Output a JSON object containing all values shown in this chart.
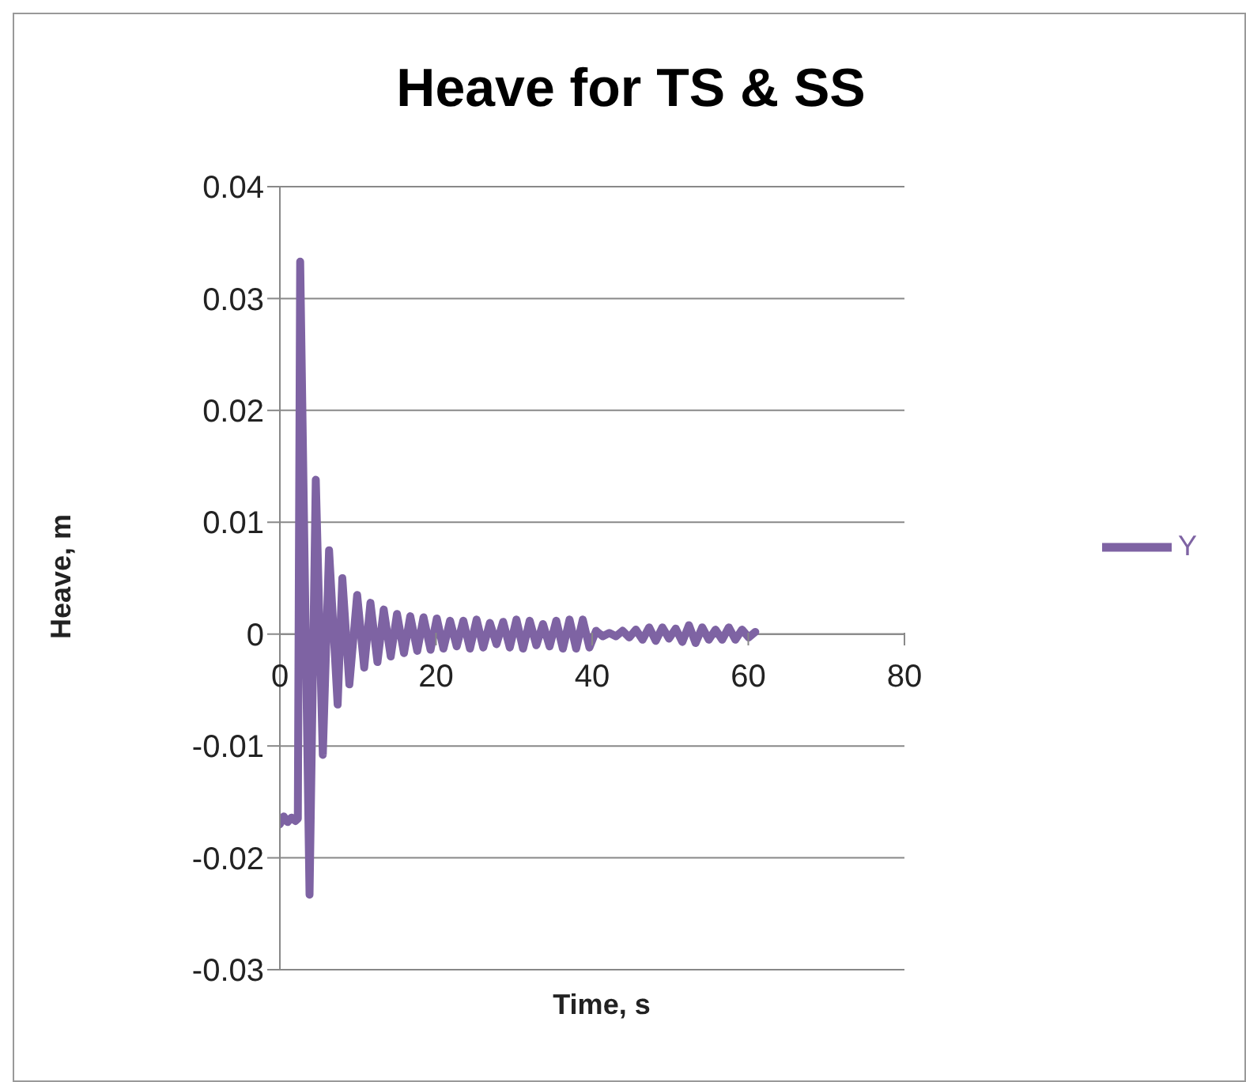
{
  "chart_data": {
    "type": "line",
    "title": "Heave for TS & SS",
    "xlabel": "Time, s",
    "ylabel": "Heave, m",
    "xlim": [
      0,
      80
    ],
    "xticks": [
      0,
      20,
      40,
      60,
      80
    ],
    "ylim": [
      -0.03,
      0.04
    ],
    "yticks": [
      -0.03,
      -0.02,
      -0.01,
      0,
      0.01,
      0.02,
      0.03,
      0.04
    ],
    "grid": "y",
    "legend": "right",
    "marker": "none",
    "line_style": "solid",
    "x": [
      0,
      0.5,
      1,
      1.5,
      2,
      2.3,
      2.6,
      3.8,
      4.6,
      5.5,
      6.3,
      7.4,
      8.0,
      8.9,
      9.9,
      10.8,
      11.6,
      12.5,
      13.3,
      14.2,
      15.0,
      15.9,
      16.7,
      17.6,
      18.4,
      19.3,
      20.1,
      20.95,
      21.8,
      22.65,
      23.5,
      24.35,
      25.2,
      26.05,
      26.9,
      27.75,
      28.6,
      29.45,
      30.3,
      31.15,
      32.0,
      32.85,
      33.7,
      34.55,
      35.4,
      36.25,
      37.1,
      37.95,
      38.8,
      39.65,
      40.5,
      41.35,
      42.2,
      43.05,
      43.9,
      44.75,
      45.6,
      46.45,
      47.3,
      48.15,
      49.0,
      49.85,
      50.7,
      51.55,
      52.4,
      53.25,
      54.1,
      54.95,
      55.8,
      56.65,
      57.5,
      58.35,
      59.2,
      60.05,
      60.9
    ],
    "series": [
      {
        "name": "Y",
        "color": "#7e63a3",
        "values": [
          -0.017,
          -0.0163,
          -0.0168,
          -0.0164,
          -0.0167,
          -0.0165,
          0.0333,
          -0.0233,
          0.0138,
          -0.0108,
          0.0075,
          -0.0063,
          0.005,
          -0.0045,
          0.0035,
          -0.003,
          0.0028,
          -0.0025,
          0.0022,
          -0.002,
          0.0018,
          -0.0017,
          0.0016,
          -0.0015,
          0.0015,
          -0.0014,
          0.0014,
          -0.0013,
          0.0012,
          -0.0011,
          0.0012,
          -0.0013,
          0.0013,
          -0.0012,
          0.001,
          -0.0009,
          0.0011,
          -0.0012,
          0.0013,
          -0.0013,
          0.0012,
          -0.001,
          0.0009,
          -0.0011,
          0.0012,
          -0.0013,
          0.0013,
          -0.0013,
          0.0013,
          -0.0012,
          0.0003,
          -0.0002,
          0.0001,
          -0.0002,
          0.0003,
          -0.0003,
          0.0004,
          -0.0005,
          0.0006,
          -0.0006,
          0.0006,
          -0.0004,
          0.0005,
          -0.0007,
          0.0008,
          -0.0008,
          0.0006,
          -0.0005,
          0.0004,
          -0.0005,
          0.0006,
          -0.0005,
          0.0004,
          -0.0003,
          0.0002
        ]
      }
    ]
  }
}
